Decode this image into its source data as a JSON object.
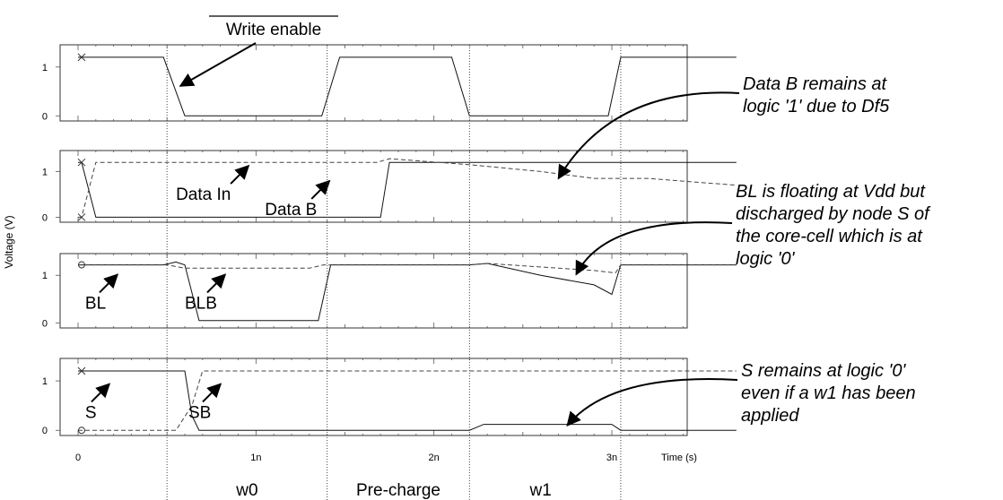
{
  "chart_data": {
    "type": "line",
    "xlabel": "Time (s)",
    "ylabel": "Voltage (V)",
    "xlim": [
      0,
      3.7
    ],
    "x_ticks": [
      {
        "v": 0,
        "label": "0"
      },
      {
        "v": 1,
        "label": "1n"
      },
      {
        "v": 2,
        "label": "2n"
      },
      {
        "v": 3,
        "label": "3n"
      }
    ],
    "y_tick_labels": [
      "0",
      "1"
    ],
    "phase_boundaries": [
      0.5,
      1.4,
      2.2,
      3.05
    ],
    "phases": [
      {
        "label": "w0",
        "x": 0.95
      },
      {
        "label": "Pre-charge",
        "x": 1.8
      },
      {
        "label": "w1",
        "x": 2.6
      }
    ],
    "panels": [
      {
        "overline_title": "Write enable",
        "ylim": [
          -0.05,
          1.4
        ],
        "series": [
          {
            "style": "solid",
            "points": [
              [
                0,
                1.2
              ],
              [
                0.48,
                1.2
              ],
              [
                0.6,
                0
              ],
              [
                1.37,
                0
              ],
              [
                1.47,
                1.2
              ],
              [
                2.1,
                1.2
              ],
              [
                2.2,
                0
              ],
              [
                2.98,
                0
              ],
              [
                3.05,
                1.2
              ],
              [
                3.7,
                1.2
              ]
            ]
          }
        ],
        "labels": [],
        "markers": [
          {
            "shape": "x",
            "x": 0.02,
            "y": 1.2
          }
        ]
      },
      {
        "ylim": [
          -0.05,
          1.4
        ],
        "series": [
          {
            "name": "Data In",
            "style": "solid",
            "points": [
              [
                0,
                1.2
              ],
              [
                0.02,
                1.2
              ],
              [
                0.1,
                0
              ],
              [
                1.7,
                0
              ],
              [
                1.75,
                1.2
              ],
              [
                3.7,
                1.2
              ]
            ]
          },
          {
            "name": "Data B",
            "style": "dashed",
            "points": [
              [
                0,
                0
              ],
              [
                0.02,
                0
              ],
              [
                0.1,
                1.2
              ],
              [
                1.68,
                1.2
              ],
              [
                1.75,
                1.28
              ],
              [
                2.2,
                1.15
              ],
              [
                2.6,
                1.0
              ],
              [
                2.9,
                0.85
              ],
              [
                3.2,
                0.85
              ],
              [
                3.7,
                0.7
              ]
            ]
          }
        ],
        "labels": [
          {
            "text": "Data In",
            "x": 0.55,
            "y": 0.38
          },
          {
            "text": "Data B",
            "x": 1.05,
            "y": 0.05
          }
        ],
        "markers": [
          {
            "shape": "x",
            "x": 0.02,
            "y": 1.2
          },
          {
            "shape": "x",
            "x": 0.02,
            "y": 0.0
          }
        ]
      },
      {
        "ylim": [
          -0.05,
          1.4
        ],
        "series": [
          {
            "name": "BL",
            "style": "solid",
            "points": [
              [
                0,
                1.22
              ],
              [
                0.48,
                1.22
              ],
              [
                0.55,
                1.28
              ],
              [
                0.6,
                1.22
              ],
              [
                0.68,
                0.05
              ],
              [
                1.35,
                0.05
              ],
              [
                1.42,
                1.22
              ],
              [
                2.2,
                1.22
              ],
              [
                2.3,
                1.25
              ],
              [
                2.6,
                1.0
              ],
              [
                2.9,
                0.8
              ],
              [
                3.0,
                0.6
              ],
              [
                3.05,
                1.22
              ],
              [
                3.7,
                1.22
              ]
            ]
          },
          {
            "name": "BLB",
            "style": "dashed",
            "points": [
              [
                0,
                1.22
              ],
              [
                0.5,
                1.22
              ],
              [
                0.6,
                1.15
              ],
              [
                1.3,
                1.15
              ],
              [
                1.38,
                1.22
              ],
              [
                2.2,
                1.22
              ],
              [
                2.3,
                1.25
              ],
              [
                2.9,
                1.1
              ],
              [
                3.02,
                1.05
              ],
              [
                3.05,
                1.22
              ],
              [
                3.7,
                1.22
              ]
            ]
          }
        ],
        "labels": [
          {
            "text": "BL",
            "x": 0.04,
            "y": 0.3
          },
          {
            "text": "BLB",
            "x": 0.6,
            "y": 0.3
          }
        ],
        "markers": [
          {
            "shape": "circle",
            "x": 0.02,
            "y": 1.22
          }
        ]
      },
      {
        "ylim": [
          -0.05,
          1.4
        ],
        "series": [
          {
            "name": "S",
            "style": "solid",
            "points": [
              [
                0,
                1.2
              ],
              [
                0.6,
                1.2
              ],
              [
                0.64,
                0.3
              ],
              [
                0.68,
                0.0
              ],
              [
                2.2,
                0.0
              ],
              [
                2.28,
                0.12
              ],
              [
                3.0,
                0.12
              ],
              [
                3.05,
                0.0
              ],
              [
                3.7,
                0.0
              ]
            ]
          },
          {
            "name": "SB",
            "style": "dashed",
            "points": [
              [
                0,
                0
              ],
              [
                0.55,
                0
              ],
              [
                0.64,
                0.5
              ],
              [
                0.7,
                1.2
              ],
              [
                3.7,
                1.2
              ]
            ]
          }
        ],
        "labels": [
          {
            "text": "S",
            "x": 0.04,
            "y": 0.25
          },
          {
            "text": "SB",
            "x": 0.62,
            "y": 0.25
          }
        ],
        "markers": [
          {
            "shape": "x",
            "x": 0.02,
            "y": 1.2
          },
          {
            "shape": "circle",
            "x": 0.02,
            "y": 0.0
          }
        ]
      }
    ],
    "annotations": [
      {
        "lines": [
          "Data B remains at",
          "logic '1' due to Df5"
        ],
        "panel": 1,
        "target": [
          2.7,
          0.85
        ]
      },
      {
        "lines": [
          "BL is floating at Vdd but",
          "discharged by node S of",
          "the core-cell which is at",
          "logic '0'"
        ],
        "panel": 2,
        "target": [
          2.8,
          1.02
        ]
      },
      {
        "lines": [
          "S remains at logic '0'",
          "even if a w1 has been",
          "applied"
        ],
        "panel": 3,
        "target": [
          2.75,
          0.1
        ]
      }
    ]
  }
}
